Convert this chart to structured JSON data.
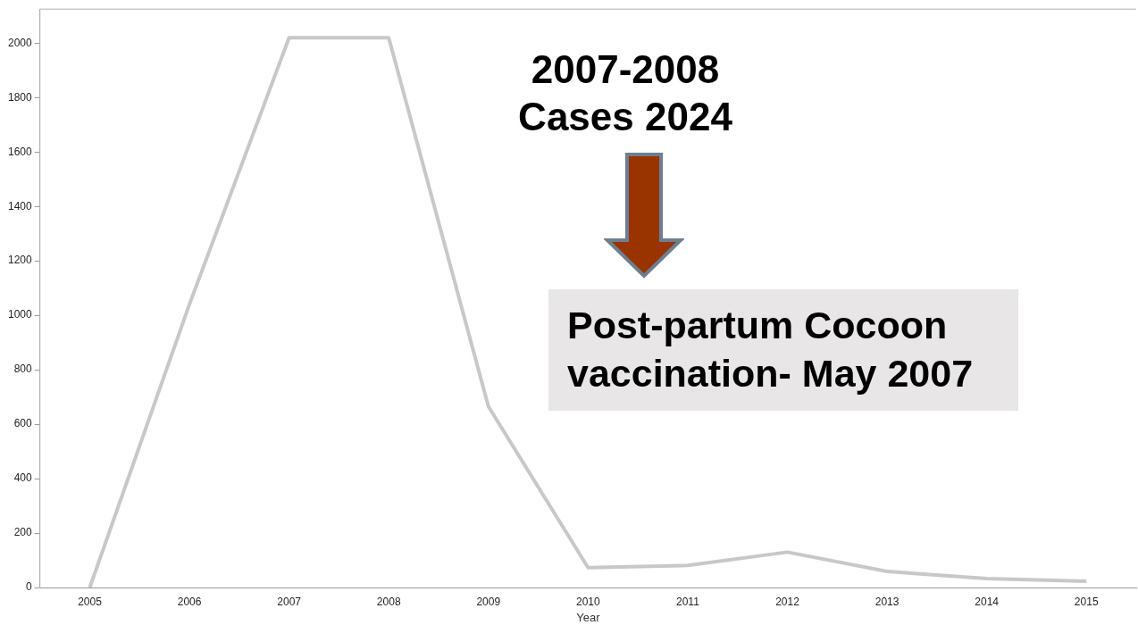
{
  "chart_data": {
    "type": "line",
    "xlabel": "Year",
    "categories": [
      "2005",
      "2006",
      "2007",
      "2008",
      "2009",
      "2010",
      "2011",
      "2012",
      "2013",
      "2014",
      "2015"
    ],
    "series": [
      {
        "color": "#c8c8c8",
        "values": [
          0,
          1040,
          2020,
          2020,
          665,
          73,
          81,
          130,
          59,
          33,
          23
        ]
      }
    ],
    "ylim": [
      0,
      2125
    ],
    "yticks": [
      0,
      200,
      400,
      600,
      800,
      1000,
      1200,
      1400,
      1600,
      1800,
      2000
    ],
    "grid": false,
    "legend": false,
    "marker": "none",
    "line_style": "solid",
    "annotations": [
      "2007-2008\nCases 2024",
      "Post-partum Cocoon\nvaccination- May 2007"
    ]
  }
}
